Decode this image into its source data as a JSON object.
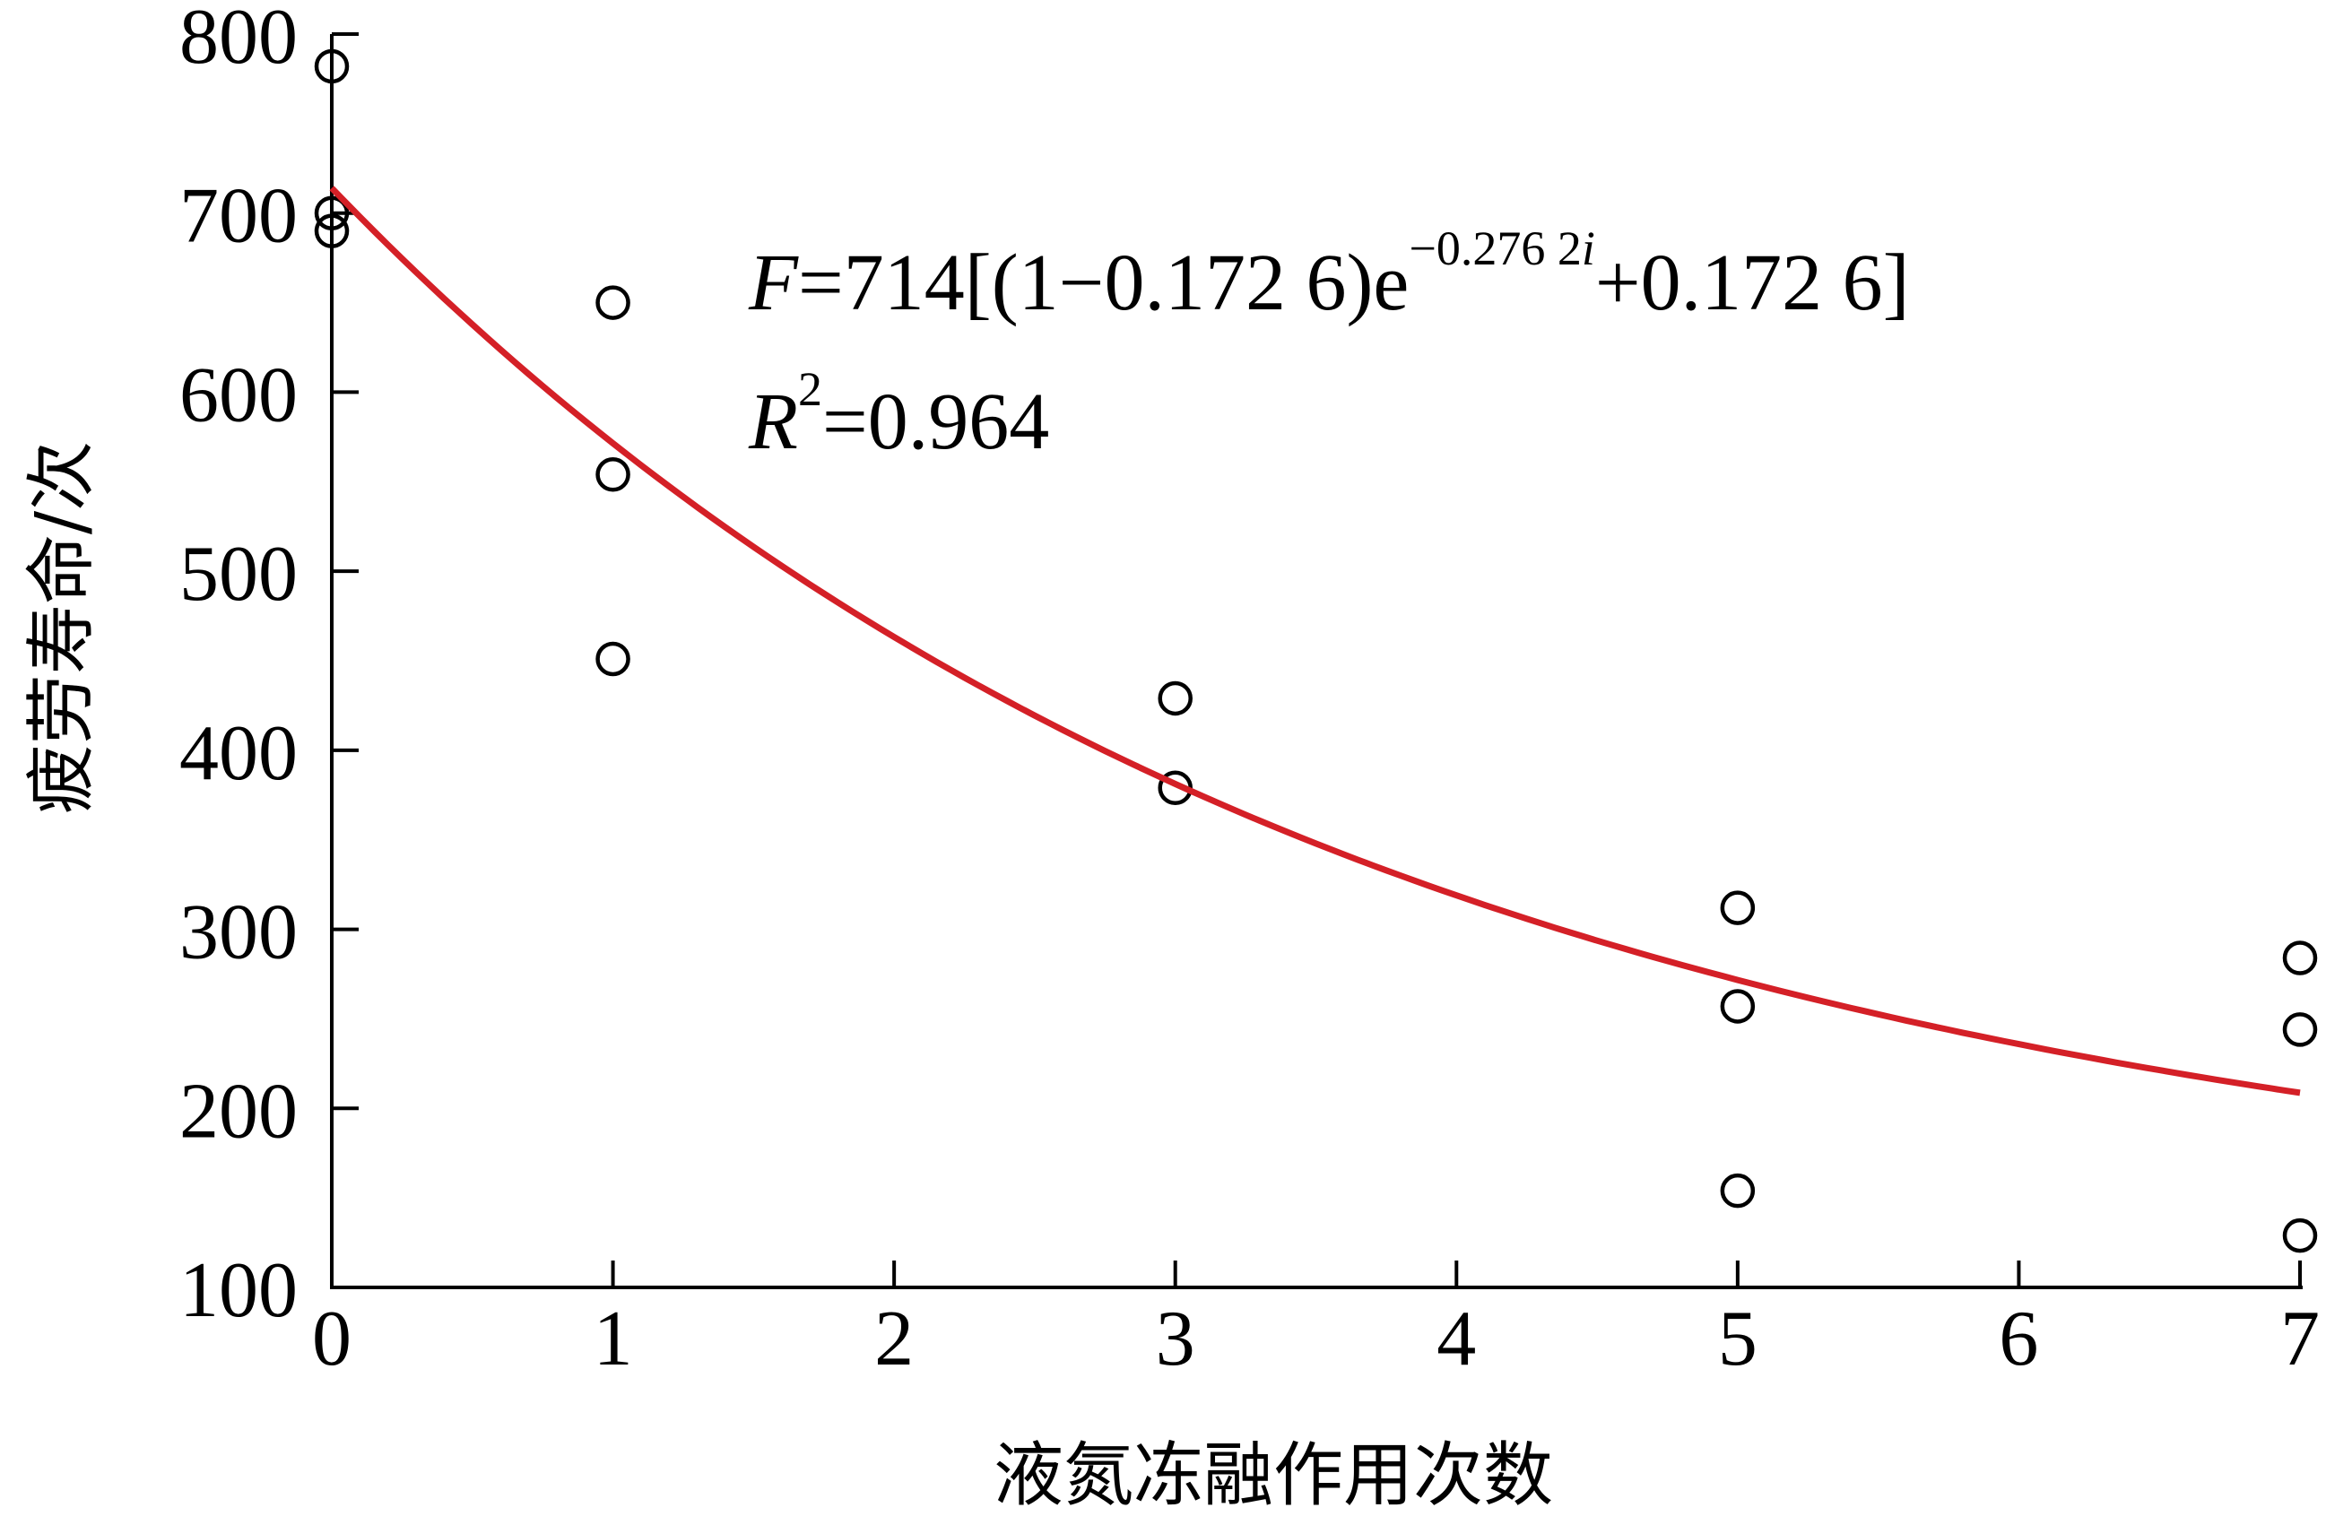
{
  "chart_data": {
    "type": "scatter",
    "xlabel": "液氮冻融作用次数",
    "ylabel": "疲劳寿命/次",
    "xlim": [
      0,
      7
    ],
    "ylim": [
      100,
      800
    ],
    "xticks": [
      "0",
      "1",
      "2",
      "3",
      "4",
      "5",
      "6",
      "7"
    ],
    "yticks": [
      "100",
      "200",
      "300",
      "400",
      "500",
      "600",
      "700",
      "800"
    ],
    "points": [
      {
        "x": 0,
        "y": 782
      },
      {
        "x": 0,
        "y": 700
      },
      {
        "x": 0,
        "y": 690
      },
      {
        "x": 1,
        "y": 650
      },
      {
        "x": 1,
        "y": 554
      },
      {
        "x": 1,
        "y": 451
      },
      {
        "x": 3,
        "y": 429
      },
      {
        "x": 3,
        "y": 379
      },
      {
        "x": 5,
        "y": 312
      },
      {
        "x": 5,
        "y": 257
      },
      {
        "x": 5,
        "y": 154
      },
      {
        "x": 7,
        "y": 284
      },
      {
        "x": 7,
        "y": 244
      },
      {
        "x": 7,
        "y": 129
      }
    ],
    "fit": {
      "equation": "F=714[(1−0.172 6)e^(−0.276 2i)+0.172 6]",
      "A": 714,
      "b": 0.1726,
      "k": 0.2762,
      "x_range": [
        0,
        7
      ],
      "color": "#d42027",
      "r2_text": "R²=0.964"
    },
    "annotation": {
      "eq_var": "F",
      "eq_body": "=714[(1−0.172 6)e",
      "eq_exp_num": "−0.276 2",
      "eq_exp_var": "i",
      "eq_tail": "+0.172 6]",
      "r2_var": "R",
      "r2_sup": "2",
      "r2_value": "=0.964"
    },
    "grid": false,
    "legend": "none"
  }
}
